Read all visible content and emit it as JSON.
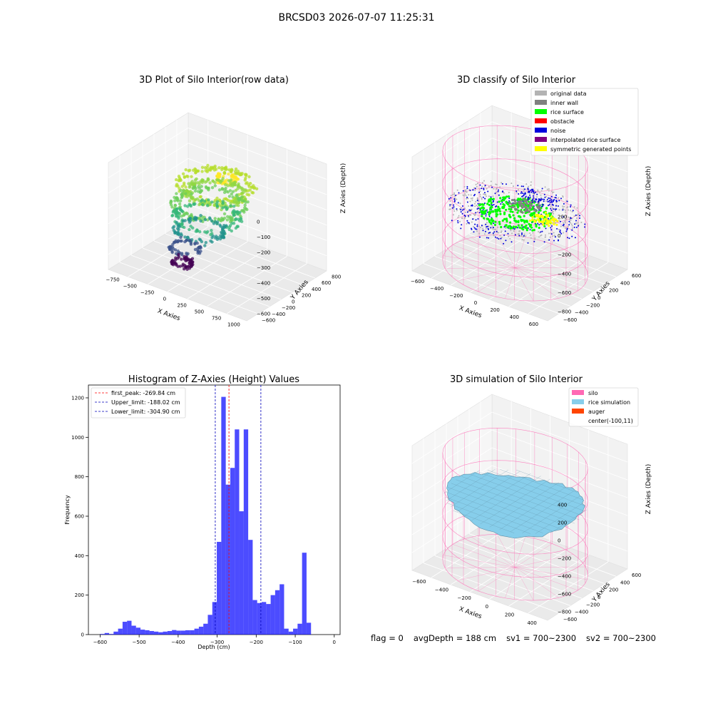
{
  "figure": {
    "suptitle": "BRCSD03 2026-07-07 11:25:31",
    "status": {
      "flag": "flag = 0",
      "avg_depth": "avgDepth = 188 cm",
      "sv1": "sv1 = 700~2300",
      "sv2": "sv2 = 700~2300"
    }
  },
  "chart_data": [
    {
      "type": "scatter",
      "projection": "3d",
      "title": "3D Plot of Silo Interior(row data)",
      "xlabel": "X Axies",
      "ylabel": "Y Axies",
      "zlabel": "Z Axies (Depth)",
      "x_ticks": [
        "−750",
        "−500",
        "−250",
        "0",
        "250",
        "500",
        "750",
        "1000"
      ],
      "y_ticks": [
        "−600",
        "−400",
        "−200",
        "0",
        "200",
        "400",
        "600",
        "800"
      ],
      "z_ticks": [
        "0",
        "−100",
        "−200",
        "−300",
        "−400",
        "−500",
        "−600"
      ],
      "xlim": [
        -800,
        1000
      ],
      "ylim": [
        -650,
        850
      ],
      "zlim": [
        -650,
        30
      ],
      "colormap": "viridis",
      "groups": [
        {
          "color": "#fde725",
          "cx": 120,
          "cy": 250,
          "r": 120,
          "z": -95,
          "n": 60
        },
        {
          "color": "#b5de2b",
          "cx": 50,
          "cy": 150,
          "r": 440,
          "z": -130,
          "n": 160
        },
        {
          "color": "#90d743",
          "cx": 50,
          "cy": 150,
          "r": 340,
          "z": -180,
          "n": 150
        },
        {
          "color": "#6ccd5a",
          "cx": 0,
          "cy": 100,
          "r": 420,
          "z": -250,
          "n": 150
        },
        {
          "color": "#35b779",
          "cx": 0,
          "cy": 50,
          "r": 380,
          "z": -320,
          "n": 110
        },
        {
          "color": "#21918c",
          "cx": -50,
          "cy": 0,
          "r": 300,
          "z": -400,
          "n": 90
        },
        {
          "color": "#3b528b",
          "cx": -150,
          "cy": -150,
          "r": 180,
          "z": -500,
          "n": 60
        },
        {
          "color": "#440154",
          "cx": -150,
          "cy": -200,
          "r": 120,
          "z": -580,
          "n": 60
        }
      ]
    },
    {
      "type": "scatter",
      "projection": "3d",
      "title": "3D classify of Silo Interior",
      "xlabel": "X Axies",
      "ylabel": "Y Axies",
      "zlabel": "Z Axies (Depth)",
      "x_ticks": [
        "−600",
        "−400",
        "−200",
        "0",
        "200",
        "400",
        "600"
      ],
      "y_ticks": [
        "−600",
        "−400",
        "−200",
        "0",
        "200",
        "400",
        "600"
      ],
      "z_ticks": [
        "200",
        "0",
        "−200",
        "−400",
        "−600",
        "−800"
      ],
      "xlim": [
        -700,
        600
      ],
      "ylim": [
        -650,
        650
      ],
      "zlim": [
        -900,
        300
      ],
      "legend": {
        "location": "top-right",
        "entries": [
          {
            "label": "original data",
            "color": "#b3b3b3"
          },
          {
            "label": "inner wall",
            "color": "#808080"
          },
          {
            "label": "rice surface",
            "color": "#00ff00"
          },
          {
            "label": "obstacle",
            "color": "#ff0000"
          },
          {
            "label": "noise",
            "color": "#0000dd"
          },
          {
            "label": "interpolated rice surface",
            "color": "#800080"
          },
          {
            "label": "symmetric generated points",
            "color": "#ffff00"
          }
        ]
      },
      "silo": {
        "center": [
          -100,
          11
        ],
        "radius": 600,
        "z_top": 250,
        "z_bottom": -900,
        "color": "#ff69b4"
      },
      "point_groups": [
        {
          "name": "original data",
          "color": "#b3b3b3",
          "shape": "ring",
          "cx": -100,
          "cy": 11,
          "r_min": 300,
          "r_max": 560,
          "z": -300,
          "n": 320
        },
        {
          "name": "noise",
          "color": "#0000dd",
          "shape": "ring",
          "cx": -100,
          "cy": 11,
          "r_min": 200,
          "r_max": 580,
          "z": -340,
          "n": 300
        },
        {
          "name": "rice surface",
          "color": "#00ff00",
          "shape": "disc",
          "cx": -100,
          "cy": 11,
          "r_max": 310,
          "z": -330,
          "n": 280
        },
        {
          "name": "symmetric generated points",
          "color": "#ffff00",
          "shape": "disc",
          "cx": 150,
          "cy": 50,
          "r_max": 120,
          "z": -310,
          "n": 60
        },
        {
          "name": "inner wall",
          "color": "#808080",
          "shape": "disc",
          "cx": -50,
          "cy": 80,
          "r_max": 130,
          "z": -250,
          "n": 60
        },
        {
          "name": "noise",
          "color": "#0000dd",
          "shape": "arc",
          "cx": 50,
          "cy": 200,
          "r_min": 80,
          "r_max": 170,
          "z": -150,
          "n": 70
        }
      ]
    },
    {
      "type": "bar",
      "title": "Histogram of Z-Axies (Height) Values",
      "xlabel": "Depth (cm)",
      "ylabel": "Frequency",
      "xlim": [
        -630,
        15
      ],
      "ylim": [
        0,
        1265
      ],
      "x_ticks": [
        -600,
        -500,
        -400,
        -300,
        -200,
        -100,
        0
      ],
      "y_ticks": [
        0,
        200,
        400,
        600,
        800,
        1000,
        1200
      ],
      "bar_color": "#0000ff",
      "bar_alpha": 0.7,
      "bins": {
        "start": -600,
        "width": 11.5,
        "counts": [
          3,
          8,
          3,
          15,
          30,
          65,
          70,
          45,
          35,
          25,
          22,
          18,
          15,
          12,
          15,
          18,
          23,
          20,
          20,
          22,
          22,
          30,
          40,
          55,
          100,
          165,
          470,
          1205,
          760,
          845,
          1040,
          625,
          1040,
          480,
          175,
          160,
          165,
          155,
          200,
          225,
          255,
          30,
          15,
          30,
          55,
          415,
          60
        ]
      },
      "vlines": [
        {
          "x": -269.84,
          "color": "#ff0000",
          "label": "first_peak: -269.84 cm"
        },
        {
          "x": -188.02,
          "color": "#0000bb",
          "label": "Upper_limit: -188.02 cm"
        },
        {
          "x": -304.9,
          "color": "#0000bb",
          "label": "Lower_limit: -304.90 cm"
        }
      ],
      "legend": {
        "location": "top-left"
      }
    },
    {
      "type": "surface",
      "projection": "3d",
      "title": "3D simulation of Silo Interior",
      "xlabel": "X Axies",
      "ylabel": "Y Axies",
      "zlabel": "Z Axies (Depth)",
      "x_ticks": [
        "−600",
        "−400",
        "−200",
        "0",
        "200",
        "400"
      ],
      "y_ticks": [
        "−600",
        "−400",
        "−200",
        "0",
        "200",
        "400",
        "600"
      ],
      "z_ticks": [
        "400",
        "200",
        "0",
        "−200",
        "−400",
        "−600",
        "−800"
      ],
      "xlim": [
        -700,
        600
      ],
      "ylim": [
        -650,
        650
      ],
      "zlim": [
        -900,
        450
      ],
      "legend": {
        "location": "top-right",
        "entries": [
          {
            "label": "silo",
            "color": "#ff69b4"
          },
          {
            "label": "rice simulation",
            "color": "#87ceeb"
          },
          {
            "label": "auger",
            "color": "#ff4500"
          },
          {
            "label": "center(-100,11)",
            "color": ""
          }
        ]
      },
      "silo": {
        "center": [
          -100,
          11
        ],
        "radius": 600,
        "z_top": 250,
        "z_bottom": -900,
        "color": "#ff69b4"
      },
      "rice_surface": {
        "color": "#87ceeb",
        "z_level": -188
      }
    }
  ]
}
